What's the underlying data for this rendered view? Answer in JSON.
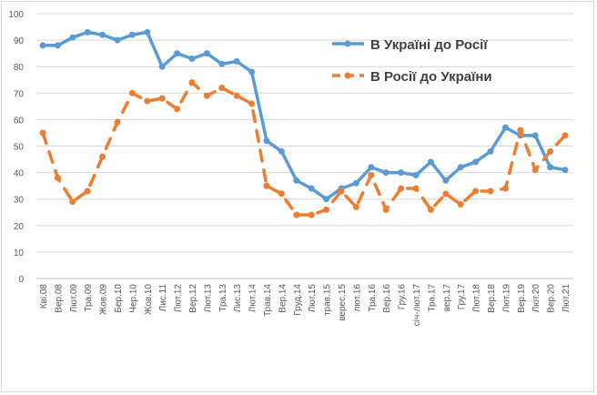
{
  "chart_data": {
    "type": "line",
    "title": "",
    "xlabel": "",
    "ylabel": "",
    "ylim": [
      0,
      100
    ],
    "yticks": [
      0,
      10,
      20,
      30,
      40,
      50,
      60,
      70,
      80,
      90,
      100
    ],
    "grid": true,
    "legend_placement": "top-right",
    "categories": [
      "Кві.08",
      "Вер.08",
      "Лют.09",
      "Тра.09",
      "Жов.09",
      "Бер.10",
      "Чер.10",
      "Жов.10",
      "Лис.11",
      "Лют.12",
      "Вер.12",
      "Лют.13",
      "Тра.13",
      "Лис.13",
      "Лют.14",
      "Трав.14",
      "Вер.14",
      "Груд.14",
      "Лют.15",
      "трав.15",
      "верес.15",
      "лют.16",
      "Тра.16",
      "Вер.16",
      "Гру.16",
      "січ-лют.17",
      "Тра.17",
      "вер.17",
      "Гру.17",
      "Лют.18",
      "Вер.18",
      "Лют.19",
      "Вер.19",
      "Лют.20",
      "Вер.20",
      "Лют.21"
    ],
    "series": [
      {
        "name": "В Україні до Росії",
        "color": "#5b9bd5",
        "style": "solid",
        "values": [
          88,
          88,
          91,
          93,
          92,
          90,
          92,
          93,
          80,
          85,
          83,
          85,
          81,
          82,
          78,
          52,
          48,
          37,
          34,
          30,
          34,
          36,
          42,
          40,
          40,
          39,
          44,
          37,
          42,
          44,
          48,
          57,
          54,
          54,
          42,
          41
        ]
      },
      {
        "name": "В Росії до України",
        "color": "#ed7d31",
        "style": "dashed",
        "values": [
          55,
          38,
          29,
          33,
          46,
          59,
          70,
          67,
          68,
          64,
          74,
          69,
          72,
          69,
          66,
          35,
          32,
          24,
          24,
          26,
          33,
          27,
          39,
          26,
          34,
          34,
          26,
          32,
          28,
          33,
          33,
          34,
          56,
          41,
          48,
          54
        ]
      }
    ]
  }
}
